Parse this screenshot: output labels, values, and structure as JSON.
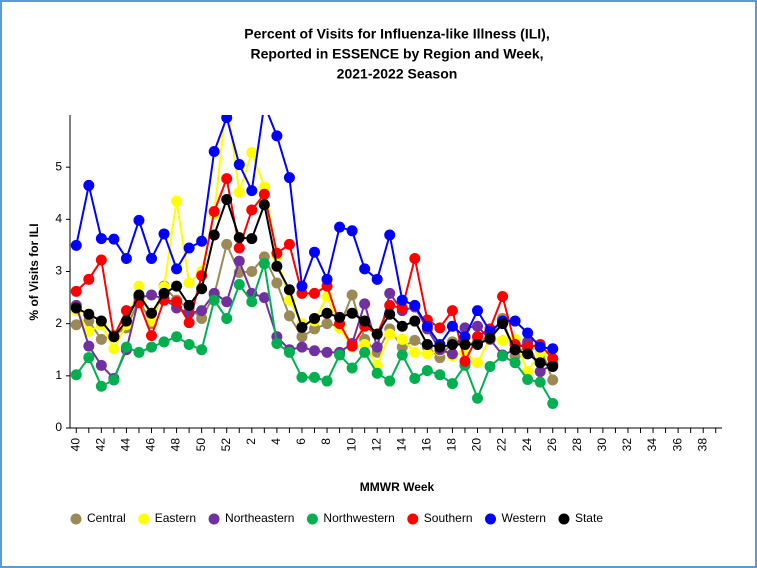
{
  "chart_data": {
    "type": "line",
    "title": "Percent of Visits for Influenza-like Illness (ILI),",
    "subtitle": [
      "Reported in ESSENCE by Region and Week,",
      "2021-2022 Season"
    ],
    "x_label": "MMWR Week",
    "y_label": "% of Visits for ILI",
    "categories": [
      "40",
      null,
      "42",
      null,
      "44",
      null,
      "46",
      null,
      "48",
      null,
      "50",
      null,
      "52",
      null,
      "2",
      null,
      "4",
      null,
      "6",
      null,
      "8",
      null,
      "10",
      null,
      "12",
      null,
      "14",
      null,
      "16",
      null,
      "18",
      null,
      "20",
      null,
      "22",
      null,
      "24",
      null,
      "26",
      null,
      "28",
      null,
      "30",
      null,
      "32",
      null,
      "34",
      null,
      "36",
      null,
      "38",
      null
    ],
    "ylim": [
      0,
      6
    ],
    "yticks": [
      0,
      1,
      2,
      3,
      4,
      5
    ],
    "grid": false,
    "legend": "bottom",
    "series": [
      {
        "name": "Central",
        "color": "#9c8a56",
        "values": [
          1.98,
          2.05,
          1.7,
          1.78,
          1.92,
          2.45,
          2.0,
          2.72,
          2.45,
          2.3,
          2.1,
          2.55,
          3.52,
          2.98,
          3.0,
          3.28,
          2.78,
          2.15,
          1.75,
          1.9,
          2.0,
          1.95,
          2.55,
          1.7,
          1.45,
          1.9,
          1.55,
          1.68,
          1.55,
          1.35,
          1.65,
          1.6,
          1.65,
          1.75,
          2.1,
          1.38,
          1.6,
          1.55,
          0.92,
          null,
          null,
          null,
          null,
          null,
          null,
          null,
          null,
          null,
          null,
          null,
          null,
          null
        ]
      },
      {
        "name": "Eastern",
        "color": "#ffff00",
        "values": [
          2.25,
          1.85,
          1.98,
          1.52,
          1.98,
          2.72,
          2.05,
          2.7,
          4.35,
          2.78,
          3.0,
          4.1,
          6.3,
          4.52,
          5.28,
          4.62,
          3.3,
          2.45,
          2.0,
          2.05,
          2.52,
          1.92,
          1.55,
          1.6,
          1.2,
          1.8,
          1.7,
          1.45,
          1.42,
          1.48,
          1.38,
          1.45,
          1.25,
          1.72,
          1.68,
          1.7,
          1.08,
          1.45,
          1.3,
          null,
          null,
          null,
          null,
          null,
          null,
          null,
          null,
          null,
          null,
          null,
          null,
          null
        ]
      },
      {
        "name": "Northeastern",
        "color": "#7030a0",
        "values": [
          2.35,
          1.57,
          1.2,
          0.95,
          1.5,
          2.5,
          2.55,
          2.48,
          2.3,
          2.2,
          2.25,
          2.58,
          2.42,
          3.2,
          2.58,
          2.5,
          1.75,
          1.5,
          1.55,
          1.48,
          1.45,
          1.45,
          1.62,
          2.38,
          1.55,
          2.58,
          2.25,
          2.32,
          1.9,
          1.5,
          1.42,
          1.92,
          1.95,
          1.7,
          1.4,
          1.5,
          1.65,
          1.08,
          1.22,
          null,
          null,
          null,
          null,
          null,
          null,
          null,
          null,
          null,
          null,
          null,
          null,
          null
        ]
      },
      {
        "name": "Northwestern",
        "color": "#00b050",
        "values": [
          1.02,
          1.35,
          0.8,
          0.92,
          1.55,
          1.45,
          1.55,
          1.65,
          1.75,
          1.6,
          1.5,
          2.45,
          2.1,
          2.75,
          2.42,
          3.15,
          1.62,
          1.45,
          0.97,
          0.97,
          0.9,
          1.4,
          1.15,
          1.45,
          1.05,
          0.9,
          1.4,
          0.95,
          1.1,
          1.02,
          0.85,
          1.2,
          0.57,
          1.18,
          1.38,
          1.25,
          0.93,
          0.88,
          0.47,
          null,
          null,
          null,
          null,
          null,
          null,
          null,
          null,
          null,
          null,
          null,
          null,
          null
        ]
      },
      {
        "name": "Southern",
        "color": "#ff0000",
        "values": [
          2.62,
          2.85,
          3.22,
          1.75,
          2.25,
          2.4,
          1.77,
          2.45,
          2.42,
          2.02,
          2.92,
          4.15,
          4.78,
          3.45,
          4.18,
          4.48,
          3.35,
          3.52,
          2.58,
          2.58,
          2.72,
          2.0,
          1.57,
          1.95,
          1.8,
          2.35,
          2.3,
          3.25,
          2.07,
          1.92,
          2.25,
          1.28,
          1.75,
          1.9,
          2.52,
          1.6,
          1.55,
          1.6,
          1.33,
          null,
          null,
          null,
          null,
          null,
          null,
          null,
          null,
          null,
          null,
          null,
          null,
          null
        ]
      },
      {
        "name": "Western",
        "color": "#0000ff",
        "values": [
          3.5,
          4.65,
          3.63,
          3.62,
          3.25,
          3.98,
          3.25,
          3.72,
          3.05,
          3.45,
          3.58,
          5.3,
          5.95,
          5.05,
          4.55,
          6.2,
          5.6,
          4.8,
          2.72,
          3.37,
          2.85,
          3.85,
          3.78,
          3.05,
          2.85,
          3.7,
          2.45,
          2.35,
          1.95,
          1.6,
          1.95,
          1.75,
          2.25,
          1.85,
          2.05,
          2.05,
          1.82,
          1.55,
          1.52,
          null,
          null,
          null,
          null,
          null,
          null,
          null,
          null,
          null,
          null,
          null,
          null,
          null
        ]
      },
      {
        "name": "State",
        "color": "#000000",
        "values": [
          2.3,
          2.18,
          2.05,
          1.75,
          2.05,
          2.55,
          2.2,
          2.58,
          2.72,
          2.35,
          2.67,
          3.7,
          4.38,
          3.65,
          3.63,
          4.28,
          3.1,
          2.65,
          1.93,
          2.1,
          2.2,
          2.12,
          2.2,
          2.05,
          1.8,
          2.18,
          1.95,
          2.05,
          1.6,
          1.55,
          1.6,
          1.6,
          1.6,
          1.72,
          2.0,
          1.5,
          1.42,
          1.25,
          1.18,
          null,
          null,
          null,
          null,
          null,
          null,
          null,
          null,
          null,
          null,
          null,
          null,
          null
        ]
      }
    ]
  }
}
